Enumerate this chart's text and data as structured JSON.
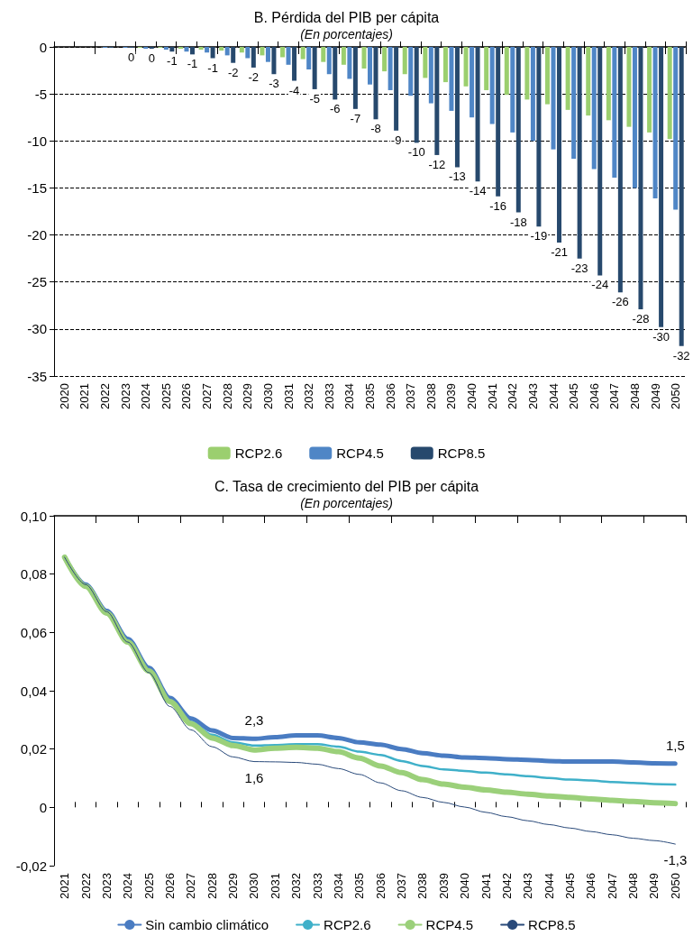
{
  "chart_data": [
    {
      "type": "bar",
      "title": "B. Pérdida del PIB per cápita",
      "subtitle": "(En porcentajes)",
      "categories": [
        "2020",
        "2021",
        "2022",
        "2023",
        "2024",
        "2025",
        "2026",
        "2027",
        "2028",
        "2029",
        "2030",
        "2031",
        "2032",
        "2033",
        "2034",
        "2035",
        "2036",
        "2037",
        "2038",
        "2039",
        "2040",
        "2041",
        "2042",
        "2043",
        "2044",
        "2045",
        "2046",
        "2047",
        "2048",
        "2049",
        "2050"
      ],
      "series": [
        {
          "name": "RCP2.6",
          "color": "#9bcf6f",
          "values": [
            0,
            0,
            0,
            0,
            -0.1,
            -0.1,
            -0.2,
            -0.3,
            -0.4,
            -0.6,
            -0.9,
            -1.1,
            -1.3,
            -1.6,
            -1.9,
            -2.3,
            -2.6,
            -2.9,
            -3.3,
            -3.75,
            -4.2,
            -4.6,
            -5.1,
            -5.6,
            -6.1,
            -6.7,
            -7.3,
            -7.8,
            -8.5,
            -9.1,
            -9.8
          ]
        },
        {
          "name": "RCP4.5",
          "color": "#4f86c6",
          "values": [
            0,
            0,
            -0.1,
            -0.1,
            -0.2,
            -0.3,
            -0.5,
            -0.6,
            -0.9,
            -1.2,
            -1.6,
            -1.9,
            -2.4,
            -2.9,
            -3.4,
            -4.0,
            -4.6,
            -5.2,
            -6.0,
            -6.8,
            -7.5,
            -8.2,
            -9.1,
            -10.0,
            -10.9,
            -11.9,
            -13.0,
            -13.9,
            -15.0,
            -16.1,
            -17.3
          ]
        },
        {
          "name": "RCP8.5",
          "color": "#27496d",
          "values": [
            0,
            0,
            -0.1,
            -0.1,
            -0.2,
            -0.5,
            -0.8,
            -1.2,
            -1.7,
            -2.2,
            -2.9,
            -3.6,
            -4.5,
            -5.6,
            -6.6,
            -7.7,
            -8.9,
            -10.2,
            -11.5,
            -12.8,
            -14.3,
            -15.9,
            -17.6,
            -19.1,
            -20.8,
            -22.5,
            -24.3,
            -26.1,
            -27.9,
            -29.8,
            -31.8
          ],
          "value_labels": [
            null,
            null,
            null,
            "0",
            "0",
            "-1",
            "-1",
            "-1",
            "-2",
            "-2",
            "-3",
            "-4",
            "-5",
            "-6",
            "-7",
            "-8",
            "-9",
            "-10",
            "-12",
            "-13",
            "-14",
            "-16",
            "-18",
            "-19",
            "-21",
            "-23",
            "-24",
            "-26",
            "-28",
            "-30",
            "-32"
          ]
        }
      ],
      "ylim": [
        -35,
        0
      ],
      "yticks": [
        0,
        -5,
        -10,
        -15,
        -20,
        -25,
        -30,
        -35
      ],
      "grid": "y",
      "legend": "bottom"
    },
    {
      "type": "line",
      "title": "C. Tasa de crecimiento del PIB per cápita",
      "subtitle": "(En porcentajes)",
      "categories": [
        "2021",
        "2022",
        "2023",
        "2024",
        "2025",
        "2026",
        "2027",
        "2028",
        "2029",
        "2030",
        "2031",
        "2032",
        "2033",
        "2034",
        "2035",
        "2036",
        "2037",
        "2038",
        "2039",
        "2040",
        "2041",
        "2042",
        "2043",
        "2044",
        "2045",
        "2046",
        "2047",
        "2048",
        "2049",
        "2050"
      ],
      "series": [
        {
          "name": "Sin cambio climático",
          "color": "#4a7cc2",
          "values": [
            0.0858,
            0.0764,
            0.0674,
            0.0578,
            0.0479,
            0.0375,
            0.0305,
            0.0264,
            0.0238,
            0.0235,
            0.0241,
            0.0247,
            0.0247,
            0.0238,
            0.0223,
            0.0215,
            0.02,
            0.0186,
            0.0177,
            0.0171,
            0.0169,
            0.0165,
            0.0163,
            0.0159,
            0.0157,
            0.0157,
            0.0157,
            0.0154,
            0.0151,
            0.015
          ]
        },
        {
          "name": "RCP2.6",
          "color": "#3fb0c9",
          "values": [
            0.086,
            0.0762,
            0.067,
            0.0573,
            0.0472,
            0.0365,
            0.0293,
            0.0249,
            0.0223,
            0.0212,
            0.0214,
            0.0217,
            0.0217,
            0.0208,
            0.0191,
            0.018,
            0.0159,
            0.0142,
            0.013,
            0.0125,
            0.0119,
            0.0113,
            0.0107,
            0.0101,
            0.0095,
            0.0092,
            0.0087,
            0.0084,
            0.008,
            0.0078
          ]
        },
        {
          "name": "RCP4.5",
          "color": "#9bd07a",
          "values": [
            0.0858,
            0.0758,
            0.0666,
            0.0567,
            0.0468,
            0.0363,
            0.0287,
            0.0238,
            0.0212,
            0.0197,
            0.0203,
            0.0206,
            0.0203,
            0.0191,
            0.0169,
            0.0142,
            0.0119,
            0.0095,
            0.008,
            0.0069,
            0.006,
            0.0052,
            0.0045,
            0.0039,
            0.0034,
            0.0029,
            0.0024,
            0.002,
            0.0016,
            0.0013
          ]
        },
        {
          "name": "RCP8.5",
          "color": "#2a4a7a",
          "values": [
            0.0858,
            0.0764,
            0.0671,
            0.0567,
            0.0462,
            0.0346,
            0.0266,
            0.0208,
            0.0173,
            0.0157,
            0.0156,
            0.0154,
            0.0148,
            0.0133,
            0.0113,
            0.0084,
            0.0057,
            0.0034,
            0.0017,
            0.0001,
            -0.0017,
            -0.0032,
            -0.0046,
            -0.0059,
            -0.0071,
            -0.0083,
            -0.0094,
            -0.0106,
            -0.0114,
            -0.0126
          ]
        }
      ],
      "annotations": [
        {
          "text": "2,3",
          "x": "2030",
          "y": 0.0235
        },
        {
          "text": "1,6",
          "x": "2030",
          "y": 0.0157
        },
        {
          "text": "1,5",
          "x": "2050",
          "y": 0.015
        },
        {
          "text": "-1,3",
          "x": "2050",
          "y": -0.0126
        }
      ],
      "ylim": [
        -0.02,
        0.1
      ],
      "yticks": [
        {
          "value": 0.1,
          "label": "0,10"
        },
        {
          "value": 0.08,
          "label": "0,08"
        },
        {
          "value": 0.06,
          "label": "0,06"
        },
        {
          "value": 0.04,
          "label": "0,04"
        },
        {
          "value": 0.02,
          "label": "0,02"
        },
        {
          "value": 0,
          "label": "0"
        },
        {
          "value": -0.02,
          "label": "-0,02"
        }
      ],
      "grid": false,
      "legend": "bottom",
      "marker": "none"
    }
  ]
}
